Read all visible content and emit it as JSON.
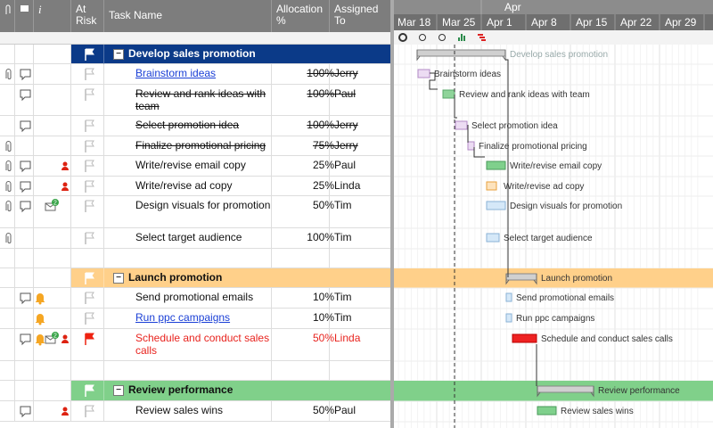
{
  "grid": {
    "header": {
      "info": "i",
      "at_risk": "At Risk",
      "task_name": "Task Name",
      "allocation": "Allocation %",
      "assigned_to": "Assigned To"
    },
    "rows": [
      {
        "task": "Develop sales promotion"
      },
      {
        "task": "Brainstorm ideas",
        "allocation": "100%",
        "assigned_to": "Jerry"
      },
      {
        "task": "Review and rank ideas with team",
        "allocation": "100%",
        "assigned_to": "Paul"
      },
      {
        "task": "Select promotion idea",
        "allocation": "100%",
        "assigned_to": "Jerry"
      },
      {
        "task": "Finalize promotional pricing",
        "allocation": "75%",
        "assigned_to": "Jerry"
      },
      {
        "task": "Write/revise email copy",
        "allocation": "25%",
        "assigned_to": "Paul"
      },
      {
        "task": "Write/revise ad copy",
        "allocation": "25%",
        "assigned_to": "Linda"
      },
      {
        "task": "Design visuals for promotion",
        "allocation": "50%",
        "assigned_to": "Tim",
        "badge": "2"
      },
      {
        "task": "Select target audience",
        "allocation": "100%",
        "assigned_to": "Tim"
      },
      {
        "task": "Launch promotion"
      },
      {
        "task": "Send promotional emails",
        "allocation": "10%",
        "assigned_to": "Tim"
      },
      {
        "task": "Run ppc campaigns",
        "allocation": "10%",
        "assigned_to": "Tim"
      },
      {
        "task": "Schedule and conduct sales calls",
        "allocation": "50%",
        "assigned_to": "Linda",
        "badge": "2"
      },
      {
        "task": "Review performance"
      },
      {
        "task": "Review sales wins",
        "allocation": "50%",
        "assigned_to": "Paul"
      }
    ]
  },
  "gantt": {
    "month": "Apr",
    "weeks": [
      "Mar 18",
      "Mar 25",
      "Apr 1",
      "Apr 8",
      "Apr 15",
      "Apr 22",
      "Apr 29"
    ]
  }
}
